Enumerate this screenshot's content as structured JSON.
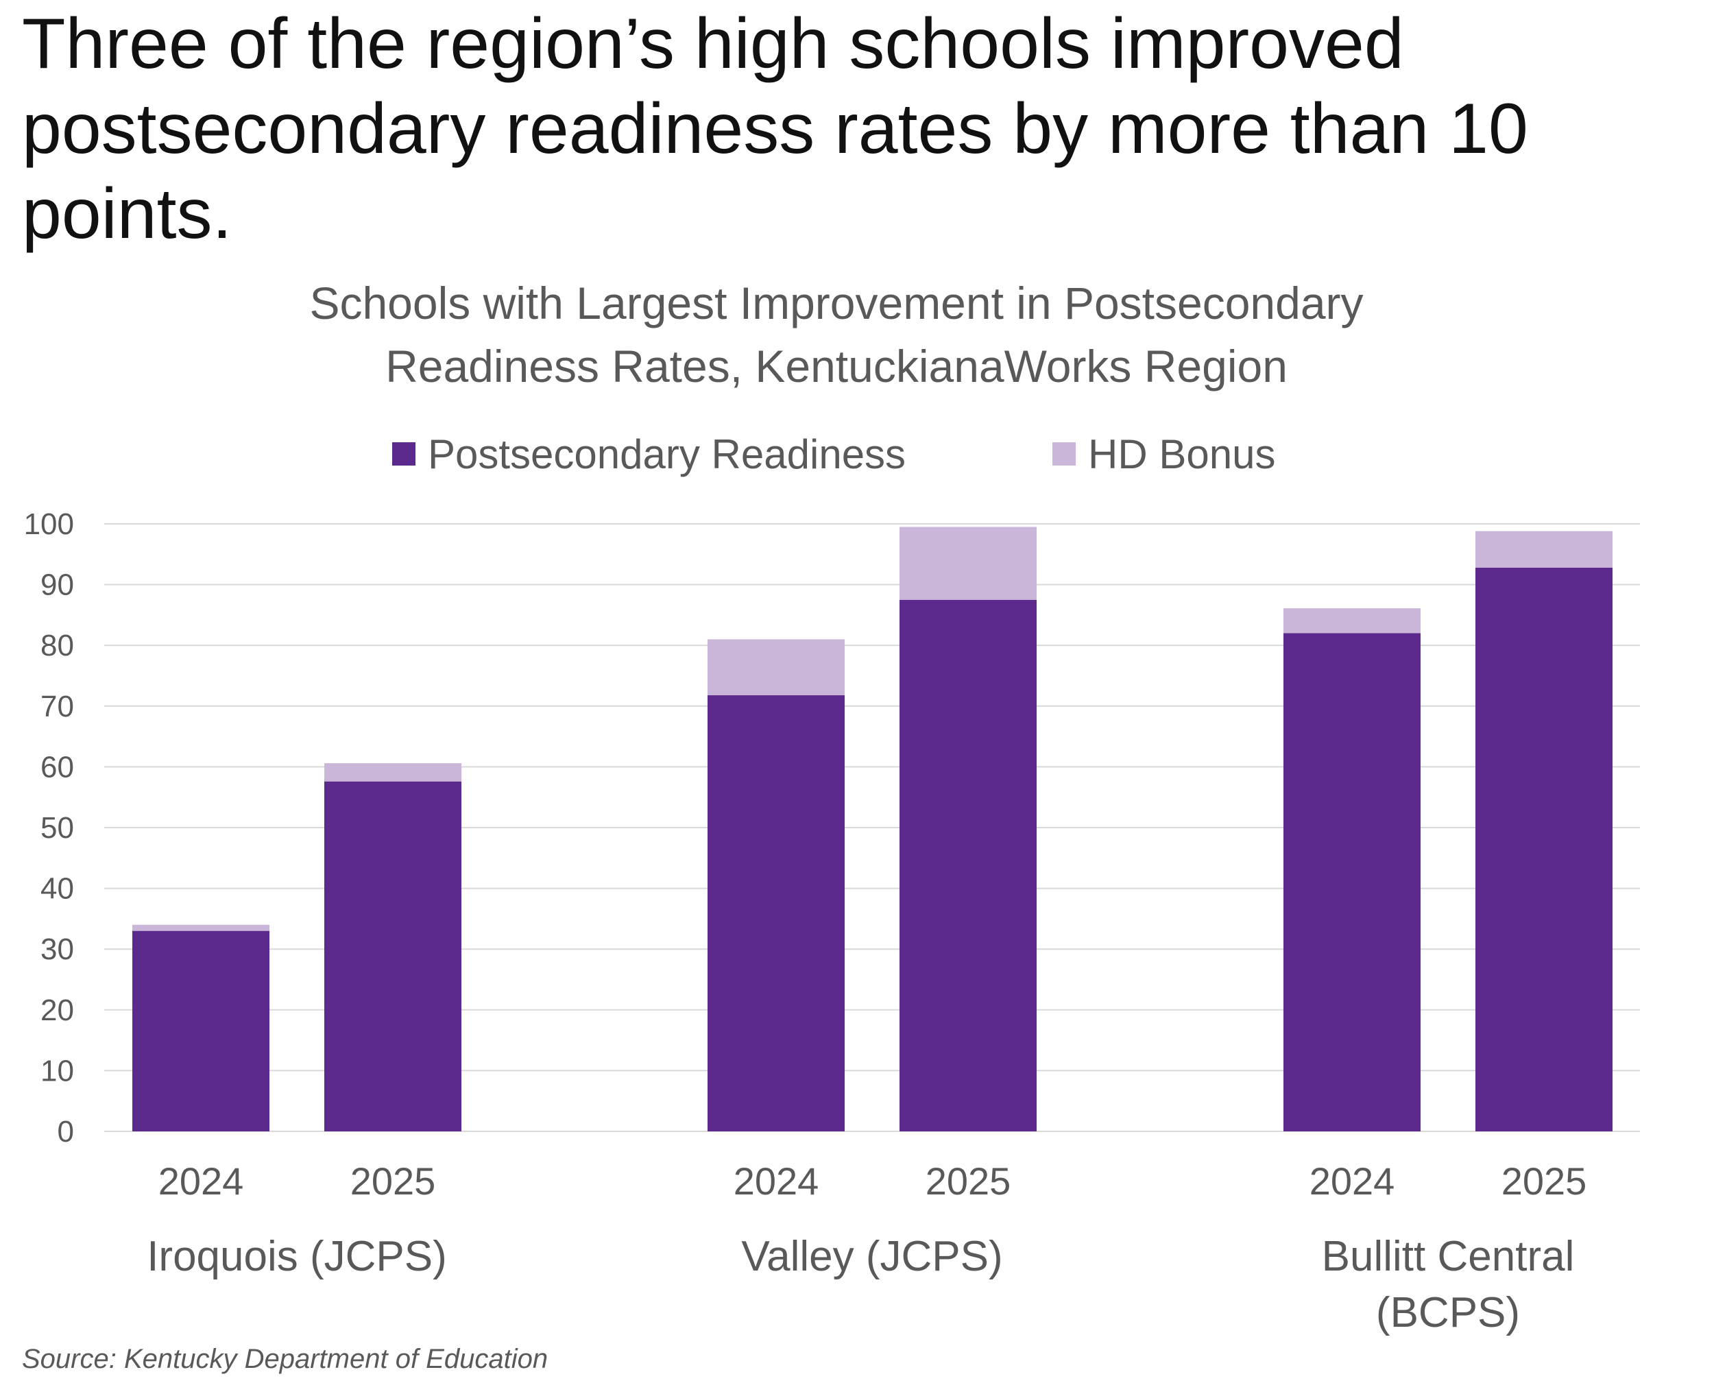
{
  "headline": "Three of the region’s high schools improved postsecondary readiness rates by more than 10 points.",
  "source": "Source: Kentucky Department of Education",
  "colors": {
    "postsecondary_readiness": "#5c2a8c",
    "hd_bonus": "#c9b6d8",
    "gridline": "#d9d9d9",
    "axis_text": "#595959"
  },
  "chart_data": {
    "type": "bar",
    "stacked": true,
    "title_lines": [
      "Schools with Largest Improvement in Postsecondary",
      "Readiness Rates, KentuckianaWorks Region"
    ],
    "legend_position": "top",
    "ylim": [
      0,
      100
    ],
    "yticks": [
      0,
      10,
      20,
      30,
      40,
      50,
      60,
      70,
      80,
      90,
      100
    ],
    "grid": true,
    "groups": [
      {
        "label_lines": [
          "Iroquois (JCPS)"
        ],
        "categories": [
          "2024",
          "2025"
        ]
      },
      {
        "label_lines": [
          "Valley (JCPS)"
        ],
        "categories": [
          "2024",
          "2025"
        ]
      },
      {
        "label_lines": [
          "Bullitt Central",
          "(BCPS)"
        ],
        "categories": [
          "2024",
          "2025"
        ]
      }
    ],
    "series": [
      {
        "name": "Postsecondary Readiness",
        "color": "#5c2a8c",
        "values": [
          33,
          57.6,
          71.8,
          87.5,
          82,
          92.8
        ]
      },
      {
        "name": "HD Bonus",
        "color": "#c9b6d8",
        "values": [
          1,
          3,
          9.2,
          12,
          4.1,
          6
        ]
      }
    ]
  }
}
